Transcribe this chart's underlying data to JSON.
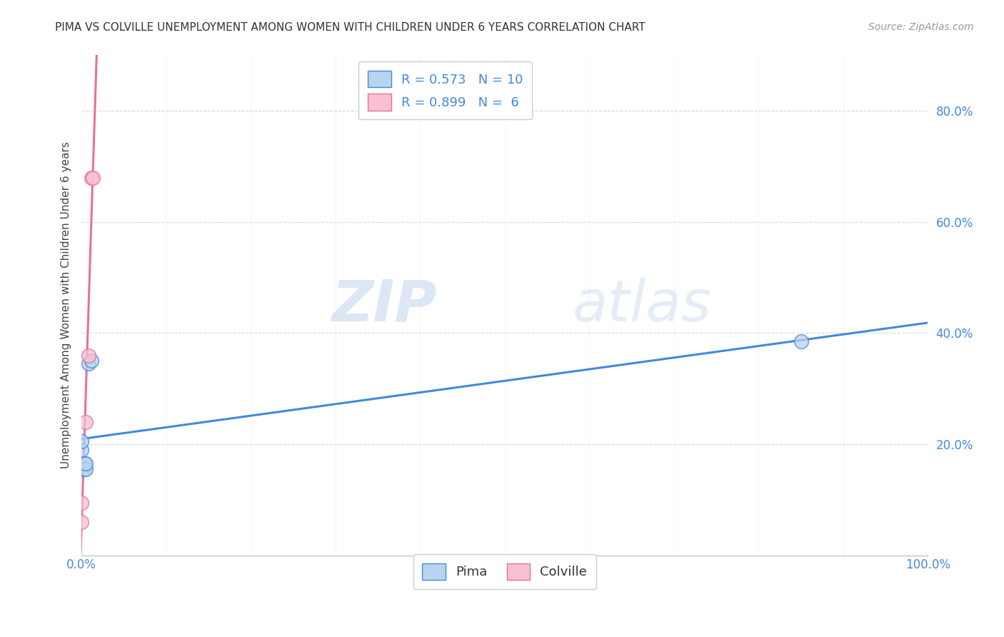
{
  "title": "PIMA VS COLVILLE UNEMPLOYMENT AMONG WOMEN WITH CHILDREN UNDER 6 YEARS CORRELATION CHART",
  "source": "Source: ZipAtlas.com",
  "ylabel": "Unemployment Among Women with Children Under 6 years",
  "watermark_zip": "ZIP",
  "watermark_atlas": "atlas",
  "pima_x": [
    0.0,
    0.0,
    0.002,
    0.003,
    0.003,
    0.005,
    0.005,
    0.008,
    0.012,
    0.85
  ],
  "pima_y": [
    0.19,
    0.205,
    0.155,
    0.165,
    0.165,
    0.155,
    0.165,
    0.345,
    0.35,
    0.385
  ],
  "pima_R": 0.573,
  "pima_N": 10,
  "colville_x": [
    0.0,
    0.0,
    0.005,
    0.008,
    0.012,
    0.013
  ],
  "colville_y": [
    0.06,
    0.095,
    0.24,
    0.36,
    0.68,
    0.68
  ],
  "colville_R": 0.899,
  "colville_N": 6,
  "pima_color": "#b8d4f0",
  "pima_line_color": "#4488dd",
  "colville_color": "#f8c0d0",
  "colville_line_color": "#e8709a",
  "marker_size": 200,
  "xlim": [
    0.0,
    1.0
  ],
  "ylim": [
    0.0,
    0.9
  ],
  "background_color": "#ffffff",
  "grid_color": "#cccccc",
  "title_fontsize": 11,
  "source_fontsize": 10,
  "axis_label_fontsize": 11,
  "tick_fontsize": 12,
  "legend_fontsize": 13
}
